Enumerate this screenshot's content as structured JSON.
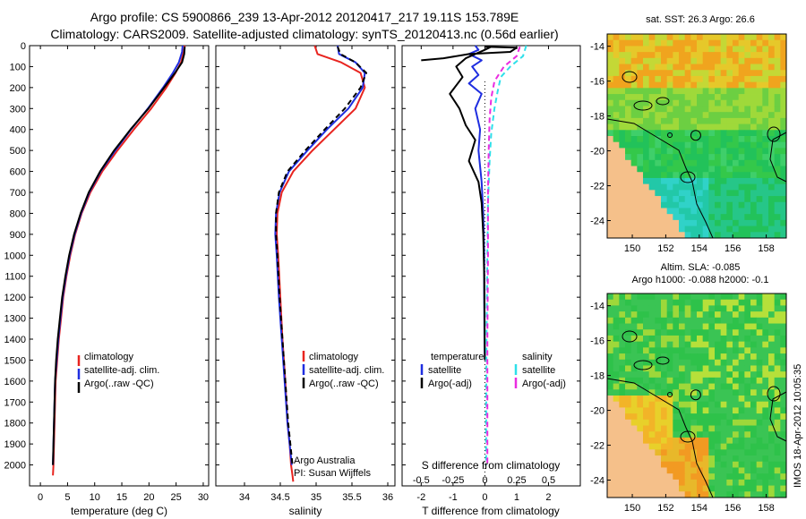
{
  "header": {
    "line1": "Argo profile: CS 5900866_239 13-Apr-2012 20120417_217 19.11S 153.789E",
    "line2": "Climatology: CARS2009. Satellite-adjusted climatology: synTS_20120413.nc (0.56d earlier)"
  },
  "colors": {
    "climatology": "#e8241f",
    "satellite": "#1f2ee0",
    "argo": "#000000",
    "sat_salinity": "#2ee0ea",
    "argo_salinity": "#ea2ce0",
    "land": "#f5c08a"
  },
  "chart_data": [
    {
      "type": "line",
      "name": "temperature",
      "xlabel": "temperature (deg C)",
      "ylabel": "",
      "xlim": [
        -2,
        31
      ],
      "ylim": [
        2100,
        0
      ],
      "xticks": [
        0,
        5,
        10,
        15,
        20,
        25,
        30
      ],
      "yticks": [
        0,
        100,
        200,
        300,
        400,
        500,
        600,
        700,
        800,
        900,
        1000,
        1100,
        1200,
        1300,
        1400,
        1500,
        1600,
        1700,
        1800,
        1900,
        2000
      ],
      "legend": [
        "climatology",
        "satellite-adj. clim.",
        "Argo(..raw -QC)"
      ],
      "series": [
        {
          "name": "climatology",
          "color": "#e8241f",
          "dash": "",
          "x": [
            26.6,
            26.4,
            25.9,
            24.9,
            23.2,
            20.4,
            17.2,
            14.2,
            11.4,
            9.2,
            7.6,
            6.4,
            5.5,
            4.8,
            4.2,
            3.8,
            3.4,
            3.1,
            2.8,
            2.6,
            2.4,
            2.3
          ],
          "y": [
            0,
            30,
            80,
            130,
            200,
            300,
            400,
            500,
            600,
            700,
            800,
            900,
            1000,
            1100,
            1200,
            1300,
            1400,
            1500,
            1600,
            1800,
            2000,
            2050
          ]
        },
        {
          "name": "satellite-adj. clim.",
          "color": "#1f2ee0",
          "dash": "",
          "x": [
            26.2,
            26.1,
            25.5,
            24.4,
            22.6,
            19.8,
            16.7,
            13.8,
            11.1,
            9.0,
            7.5,
            6.3,
            5.4,
            4.7,
            4.1,
            3.7,
            3.3,
            3.0,
            2.7,
            2.5,
            2.3
          ],
          "y": [
            0,
            30,
            80,
            130,
            200,
            300,
            400,
            500,
            600,
            700,
            800,
            900,
            1000,
            1100,
            1200,
            1300,
            1400,
            1500,
            1600,
            1800,
            2000
          ]
        },
        {
          "name": "Argo(..raw -QC)",
          "color": "#000000",
          "dash": "",
          "x": [
            26.6,
            26.5,
            26.1,
            24.8,
            22.8,
            19.9,
            16.6,
            13.6,
            11.0,
            8.9,
            7.4,
            6.2,
            5.3,
            4.6,
            4.0,
            3.6,
            3.2,
            2.9,
            2.7,
            2.5,
            2.3
          ],
          "y": [
            5,
            40,
            80,
            130,
            200,
            300,
            400,
            500,
            600,
            700,
            800,
            900,
            1000,
            1100,
            1200,
            1300,
            1400,
            1500,
            1600,
            1800,
            2000
          ]
        }
      ]
    },
    {
      "type": "line",
      "name": "salinity",
      "xlabel": "salinity",
      "ylabel": "",
      "xlim": [
        33.6,
        36.1
      ],
      "ylim": [
        2100,
        0
      ],
      "xticks": [
        34,
        34.5,
        35,
        35.5,
        36
      ],
      "xticklabels": [
        "34",
        "34.5",
        "35",
        "35.5",
        "36"
      ],
      "legend": [
        "climatology",
        "satellite-adj. clim.",
        "Argo(..raw -QC)"
      ],
      "annotation": [
        "Argo Australia",
        "PI: Susan Wijffels"
      ],
      "series": [
        {
          "name": "climatology",
          "color": "#e8241f",
          "dash": "",
          "x": [
            34.98,
            35.02,
            35.35,
            35.62,
            35.68,
            35.55,
            35.25,
            34.95,
            34.68,
            34.52,
            34.46,
            34.45,
            34.47,
            34.5,
            34.53,
            34.57,
            34.6,
            34.63,
            34.65,
            34.67,
            34.68
          ],
          "y": [
            0,
            40,
            80,
            130,
            200,
            300,
            400,
            500,
            600,
            700,
            800,
            900,
            1000,
            1200,
            1400,
            1600,
            1800,
            1900,
            2000,
            2050,
            2080
          ]
        },
        {
          "name": "satellite-adj. clim.",
          "color": "#1f2ee0",
          "dash": "",
          "x": [
            35.3,
            35.32,
            35.55,
            35.68,
            35.65,
            35.45,
            35.15,
            34.88,
            34.62,
            34.49,
            34.44,
            34.43,
            34.45,
            34.48,
            34.52,
            34.56,
            34.6,
            34.63,
            34.66
          ],
          "y": [
            0,
            40,
            80,
            130,
            200,
            300,
            400,
            500,
            600,
            700,
            800,
            900,
            1000,
            1200,
            1400,
            1600,
            1800,
            1900,
            2000
          ]
        },
        {
          "name": "Argo(..raw -QC)",
          "color": "#000000",
          "dash": "6,4",
          "x": [
            35.3,
            35.34,
            35.55,
            35.7,
            35.62,
            35.4,
            35.12,
            34.85,
            34.6,
            34.48,
            34.44,
            34.44,
            34.46,
            34.49,
            34.53,
            34.57,
            34.61,
            34.64,
            34.67
          ],
          "y": [
            5,
            40,
            80,
            130,
            200,
            300,
            400,
            500,
            600,
            700,
            800,
            900,
            1000,
            1200,
            1400,
            1600,
            1800,
            1900,
            2000
          ]
        }
      ]
    },
    {
      "type": "line",
      "name": "differences",
      "xlabel": "T difference from climatology",
      "xlabel_top": "S difference from climatology",
      "ylabel": "",
      "xlim": [
        -2.6,
        3
      ],
      "ylim": [
        2100,
        0
      ],
      "xticks": [
        -2,
        -1,
        0,
        1,
        2
      ],
      "xticklabels": [
        "-2",
        "-1",
        "0",
        "1",
        "2"
      ],
      "top_xticks": [
        -2,
        -1,
        0,
        1,
        2
      ],
      "top_xticklabels": [
        "-0.5",
        "-0.25",
        "0",
        "0.25",
        "0.5"
      ],
      "legend_temperature": [
        "temperature",
        "satellite",
        "Argo(-adj)"
      ],
      "legend_salinity": [
        "salinity",
        "satellite",
        "Argo(-adj)"
      ],
      "series": [
        {
          "name": "temperature satellite",
          "color": "#1f2ee0",
          "dash": "",
          "x": [
            -0.3,
            -0.2,
            -0.5,
            -0.1,
            -0.4,
            -0.2,
            -0.5,
            -0.1,
            -0.3,
            -0.15,
            -0.2,
            -0.1,
            -0.05,
            -0.02,
            -0.02,
            -0.01,
            0.0
          ],
          "y": [
            0,
            20,
            40,
            70,
            100,
            140,
            180,
            230,
            300,
            400,
            500,
            650,
            800,
            1000,
            1200,
            1400,
            1500
          ]
        },
        {
          "name": "temperature Argo(-adj)",
          "color": "#000000",
          "dash": "",
          "x": [
            0.2,
            0.0,
            -0.6,
            -0.9,
            -0.7,
            -1.1,
            -0.8,
            -0.6,
            -0.3,
            -0.5,
            -0.2,
            -0.1,
            -0.05,
            -0.02,
            0.0
          ],
          "y": [
            5,
            20,
            60,
            100,
            150,
            230,
            300,
            380,
            450,
            550,
            650,
            750,
            900,
            1100,
            1500
          ]
        },
        {
          "name": "salinity satellite",
          "color": "#2ee0ea",
          "dash": "6,4",
          "x": [
            1.3,
            1.2,
            0.8,
            0.5,
            0.4,
            0.3,
            0.2,
            0.15,
            0.1,
            0.08,
            0.05,
            0.04,
            0.04
          ],
          "y": [
            0,
            50,
            100,
            150,
            220,
            300,
            420,
            550,
            750,
            1000,
            1400,
            1800,
            2000
          ]
        },
        {
          "name": "salinity Argo(-adj)",
          "color": "#ea2ce0",
          "dash": "6,4",
          "x": [
            1.1,
            1.0,
            0.6,
            0.3,
            0.2,
            0.15,
            0.12,
            0.1,
            0.1,
            0.08,
            0.08,
            0.08
          ],
          "y": [
            5,
            50,
            100,
            170,
            250,
            350,
            500,
            700,
            1000,
            1400,
            1800,
            2000
          ]
        },
        {
          "name": "temperature Argo(-adj) surface",
          "color": "#000000",
          "dash": "",
          "x": [
            0.0,
            1.0,
            0.8,
            -0.5,
            -1.3,
            -2.0
          ],
          "y": [
            5,
            10,
            30,
            40,
            60,
            70
          ]
        }
      ]
    },
    {
      "type": "heatmap",
      "name": "sst-map",
      "title": "sat. SST: 26.3  Argo: 26.6",
      "xlim": [
        148.5,
        159.2
      ],
      "ylim": [
        -25,
        -13.3
      ],
      "xticks": [
        150,
        152,
        154,
        156,
        158
      ],
      "yticks": [
        -14,
        -16,
        -18,
        -20,
        -22,
        -24
      ],
      "float_lon": 153.789,
      "float_lat": -19.11
    },
    {
      "type": "heatmap",
      "name": "sla-map",
      "title_line1": "Altim. SLA: -0.085",
      "title_line2": "Argo h1000: -0.088  h2000: -0.1",
      "xlim": [
        148.5,
        159.2
      ],
      "ylim": [
        -25,
        -13.3
      ],
      "xticks": [
        150,
        152,
        154,
        156,
        158
      ],
      "yticks": [
        -14,
        -16,
        -18,
        -20,
        -22,
        -24
      ],
      "float_lon": 153.789,
      "float_lat": -19.11
    }
  ],
  "side_stamp": "IMOS 18-Apr-2012 10:05:35"
}
